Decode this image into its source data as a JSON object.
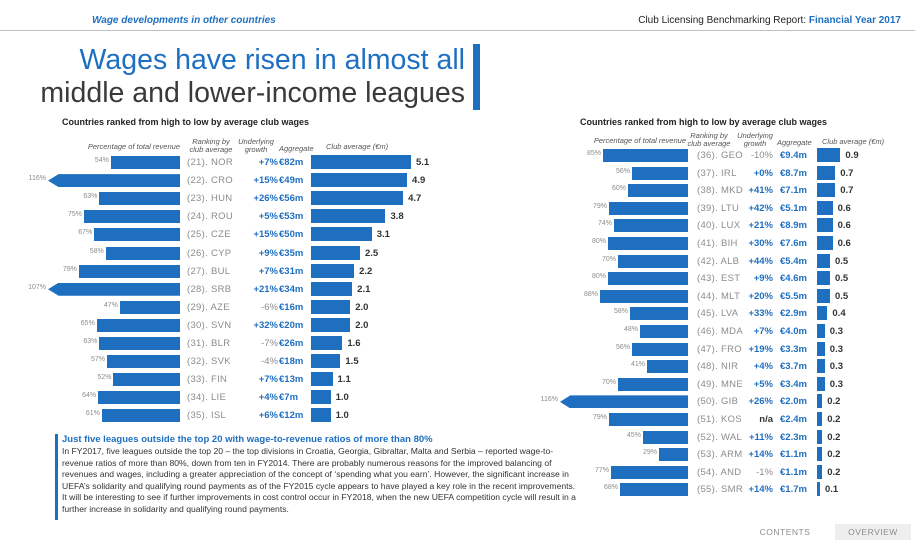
{
  "header": {
    "section_label": "Wage developments in other countries",
    "report_title_prefix": "Club Licensing Benchmarking Report: ",
    "report_title_year": "Financial Year 2017"
  },
  "headline": {
    "line1": "Wages have risen in almost all",
    "line2": "middle and lower-income leagues"
  },
  "left_table": {
    "subtitle": "Countries ranked from high to low by average club wages",
    "col_pct": "Percentage of total revenue",
    "col_rank": "Ranking by club average",
    "col_growth": "Underlying growth",
    "col_agg": "Aggregate",
    "col_avg": "Club average (€m)",
    "rows": [
      {
        "pct": 54,
        "pct_label": "54%",
        "rank": "(21). NOR",
        "growth": "+7%",
        "agg": "€82m",
        "avg": 5.1,
        "avg_label": "5.1"
      },
      {
        "pct": 116,
        "pct_label": "116%",
        "rank": "(22). CRO",
        "growth": "+15%",
        "agg": "€49m",
        "avg": 4.9,
        "avg_label": "4.9"
      },
      {
        "pct": 63,
        "pct_label": "63%",
        "rank": "(23). HUN",
        "growth": "+26%",
        "agg": "€56m",
        "avg": 4.7,
        "avg_label": "4.7"
      },
      {
        "pct": 75,
        "pct_label": "75%",
        "rank": "(24). ROU",
        "growth": "+5%",
        "agg": "€53m",
        "avg": 3.8,
        "avg_label": "3.8"
      },
      {
        "pct": 67,
        "pct_label": "67%",
        "rank": "(25). CZE",
        "growth": "+15%",
        "agg": "€50m",
        "avg": 3.1,
        "avg_label": "3.1"
      },
      {
        "pct": 58,
        "pct_label": "58%",
        "rank": "(26). CYP",
        "growth": "+9%",
        "agg": "€35m",
        "avg": 2.5,
        "avg_label": "2.5"
      },
      {
        "pct": 79,
        "pct_label": "79%",
        "rank": "(27). BUL",
        "growth": "+7%",
        "agg": "€31m",
        "avg": 2.2,
        "avg_label": "2.2"
      },
      {
        "pct": 107,
        "pct_label": "107%",
        "rank": "(28). SRB",
        "growth": "+21%",
        "agg": "€34m",
        "avg": 2.1,
        "avg_label": "2.1"
      },
      {
        "pct": 47,
        "pct_label": "47%",
        "rank": "(29). AZE",
        "growth": "-6%",
        "agg": "€16m",
        "avg": 2.0,
        "avg_label": "2.0"
      },
      {
        "pct": 65,
        "pct_label": "65%",
        "rank": "(30). SVN",
        "growth": "+32%",
        "agg": "€20m",
        "avg": 2.0,
        "avg_label": "2.0"
      },
      {
        "pct": 63,
        "pct_label": "63%",
        "rank": "(31). BLR",
        "growth": "-7%",
        "agg": "€26m",
        "avg": 1.6,
        "avg_label": "1.6"
      },
      {
        "pct": 57,
        "pct_label": "57%",
        "rank": "(32). SVK",
        "growth": "-4%",
        "agg": "€18m",
        "avg": 1.5,
        "avg_label": "1.5"
      },
      {
        "pct": 52,
        "pct_label": "52%",
        "rank": "(33). FIN",
        "growth": "+7%",
        "agg": "€13m",
        "avg": 1.1,
        "avg_label": "1.1"
      },
      {
        "pct": 64,
        "pct_label": "64%",
        "rank": "(34). LIE",
        "growth": "+4%",
        "agg": "€7m",
        "avg": 1.0,
        "avg_label": "1.0"
      },
      {
        "pct": 61,
        "pct_label": "61%",
        "rank": "(35). ISL",
        "growth": "+6%",
        "agg": "€12m",
        "avg": 1.0,
        "avg_label": "1.0"
      }
    ]
  },
  "right_table": {
    "subtitle": "Countries ranked from high to low by average club wages",
    "col_pct": "Percentage of total revenue",
    "col_rank": "Ranking by club average",
    "col_growth": "Underlying growth",
    "col_agg": "Aggregate",
    "col_avg": "Club average (€m)",
    "rows": [
      {
        "pct": 85,
        "pct_label": "85%",
        "rank": "(36). GEO",
        "growth": "-10%",
        "agg": "€9.4m",
        "avg": 0.9,
        "avg_label": "0.9"
      },
      {
        "pct": 56,
        "pct_label": "56%",
        "rank": "(37). IRL",
        "growth": "+0%",
        "agg": "€8.7m",
        "avg": 0.7,
        "avg_label": "0.7"
      },
      {
        "pct": 60,
        "pct_label": "60%",
        "rank": "(38). MKD",
        "growth": "+41%",
        "agg": "€7.1m",
        "avg": 0.7,
        "avg_label": "0.7"
      },
      {
        "pct": 79,
        "pct_label": "79%",
        "rank": "(39). LTU",
        "growth": "+42%",
        "agg": "€5.1m",
        "avg": 0.6,
        "avg_label": "0.6"
      },
      {
        "pct": 74,
        "pct_label": "74%",
        "rank": "(40). LUX",
        "growth": "+21%",
        "agg": "€8.9m",
        "avg": 0.6,
        "avg_label": "0.6"
      },
      {
        "pct": 80,
        "pct_label": "80%",
        "rank": "(41). BIH",
        "growth": "+30%",
        "agg": "€7.6m",
        "avg": 0.6,
        "avg_label": "0.6"
      },
      {
        "pct": 70,
        "pct_label": "70%",
        "rank": "(42). ALB",
        "growth": "+44%",
        "agg": "€5.4m",
        "avg": 0.5,
        "avg_label": "0.5"
      },
      {
        "pct": 80,
        "pct_label": "80%",
        "rank": "(43). EST",
        "growth": "+9%",
        "agg": "€4.6m",
        "avg": 0.5,
        "avg_label": "0.5"
      },
      {
        "pct": 88,
        "pct_label": "88%",
        "rank": "(44). MLT",
        "growth": "+20%",
        "agg": "€5.5m",
        "avg": 0.5,
        "avg_label": "0.5"
      },
      {
        "pct": 58,
        "pct_label": "58%",
        "rank": "(45). LVA",
        "growth": "+33%",
        "agg": "€2.9m",
        "avg": 0.4,
        "avg_label": "0.4"
      },
      {
        "pct": 48,
        "pct_label": "48%",
        "rank": "(46). MDA",
        "growth": "+7%",
        "agg": "€4.0m",
        "avg": 0.3,
        "avg_label": "0.3"
      },
      {
        "pct": 56,
        "pct_label": "56%",
        "rank": "(47). FRO",
        "growth": "+19%",
        "agg": "€3.3m",
        "avg": 0.3,
        "avg_label": "0.3"
      },
      {
        "pct": 41,
        "pct_label": "41%",
        "rank": "(48). NIR",
        "growth": "+4%",
        "agg": "€3.7m",
        "avg": 0.3,
        "avg_label": "0.3"
      },
      {
        "pct": 70,
        "pct_label": "70%",
        "rank": "(49). MNE",
        "growth": "+5%",
        "agg": "€3.4m",
        "avg": 0.3,
        "avg_label": "0.3"
      },
      {
        "pct": 116,
        "pct_label": "116%",
        "rank": "(50). GIB",
        "growth": "+26%",
        "agg": "€2.0m",
        "avg": 0.2,
        "avg_label": "0.2"
      },
      {
        "pct": 79,
        "pct_label": "79%",
        "rank": "(51). KOS",
        "growth": "n/a",
        "agg": "€2.4m",
        "avg": 0.2,
        "avg_label": "0.2"
      },
      {
        "pct": 45,
        "pct_label": "45%",
        "rank": "(52). WAL",
        "growth": "+11%",
        "agg": "€2.3m",
        "avg": 0.2,
        "avg_label": "0.2"
      },
      {
        "pct": 29,
        "pct_label": "29%",
        "rank": "(53). ARM",
        "growth": "+14%",
        "agg": "€1.1m",
        "avg": 0.2,
        "avg_label": "0.2"
      },
      {
        "pct": 77,
        "pct_label": "77%",
        "rank": "(54). AND",
        "growth": "-1%",
        "agg": "€1.1m",
        "avg": 0.2,
        "avg_label": "0.2"
      },
      {
        "pct": 68,
        "pct_label": "68%",
        "rank": "(55). SMR",
        "growth": "+14%",
        "agg": "€1.7m",
        "avg": 0.1,
        "avg_label": "0.1"
      }
    ]
  },
  "note": {
    "title": "Just five leagues outside the top 20 with wage-to-revenue ratios of more than 80%",
    "body": "In FY2017, five leagues outside the top 20 – the top divisions in Croatia, Georgia, Gibraltar, Malta and Serbia – reported wage-to-revenue ratios of more than 80%, down from ten in FY2014. There are probably numerous reasons for the improved balancing of revenues and wages, including a greater appreciation of the concept of ‘spending what you earn’. However, the significant increase in UEFA’s solidarity and qualifying round payments as of the FY2015 cycle appears to have played a key role in the recent improvements. It will be interesting to see if further improvements in cost control occur in FY2018, when the new UEFA competition cycle will result in a further increase in solidarity and qualifying round payments."
  },
  "footer": {
    "contents": "CONTENTS",
    "overview": "OVERVIEW"
  },
  "colors": {
    "accent": "#1f6fc1",
    "muted": "#8c8c8c"
  }
}
